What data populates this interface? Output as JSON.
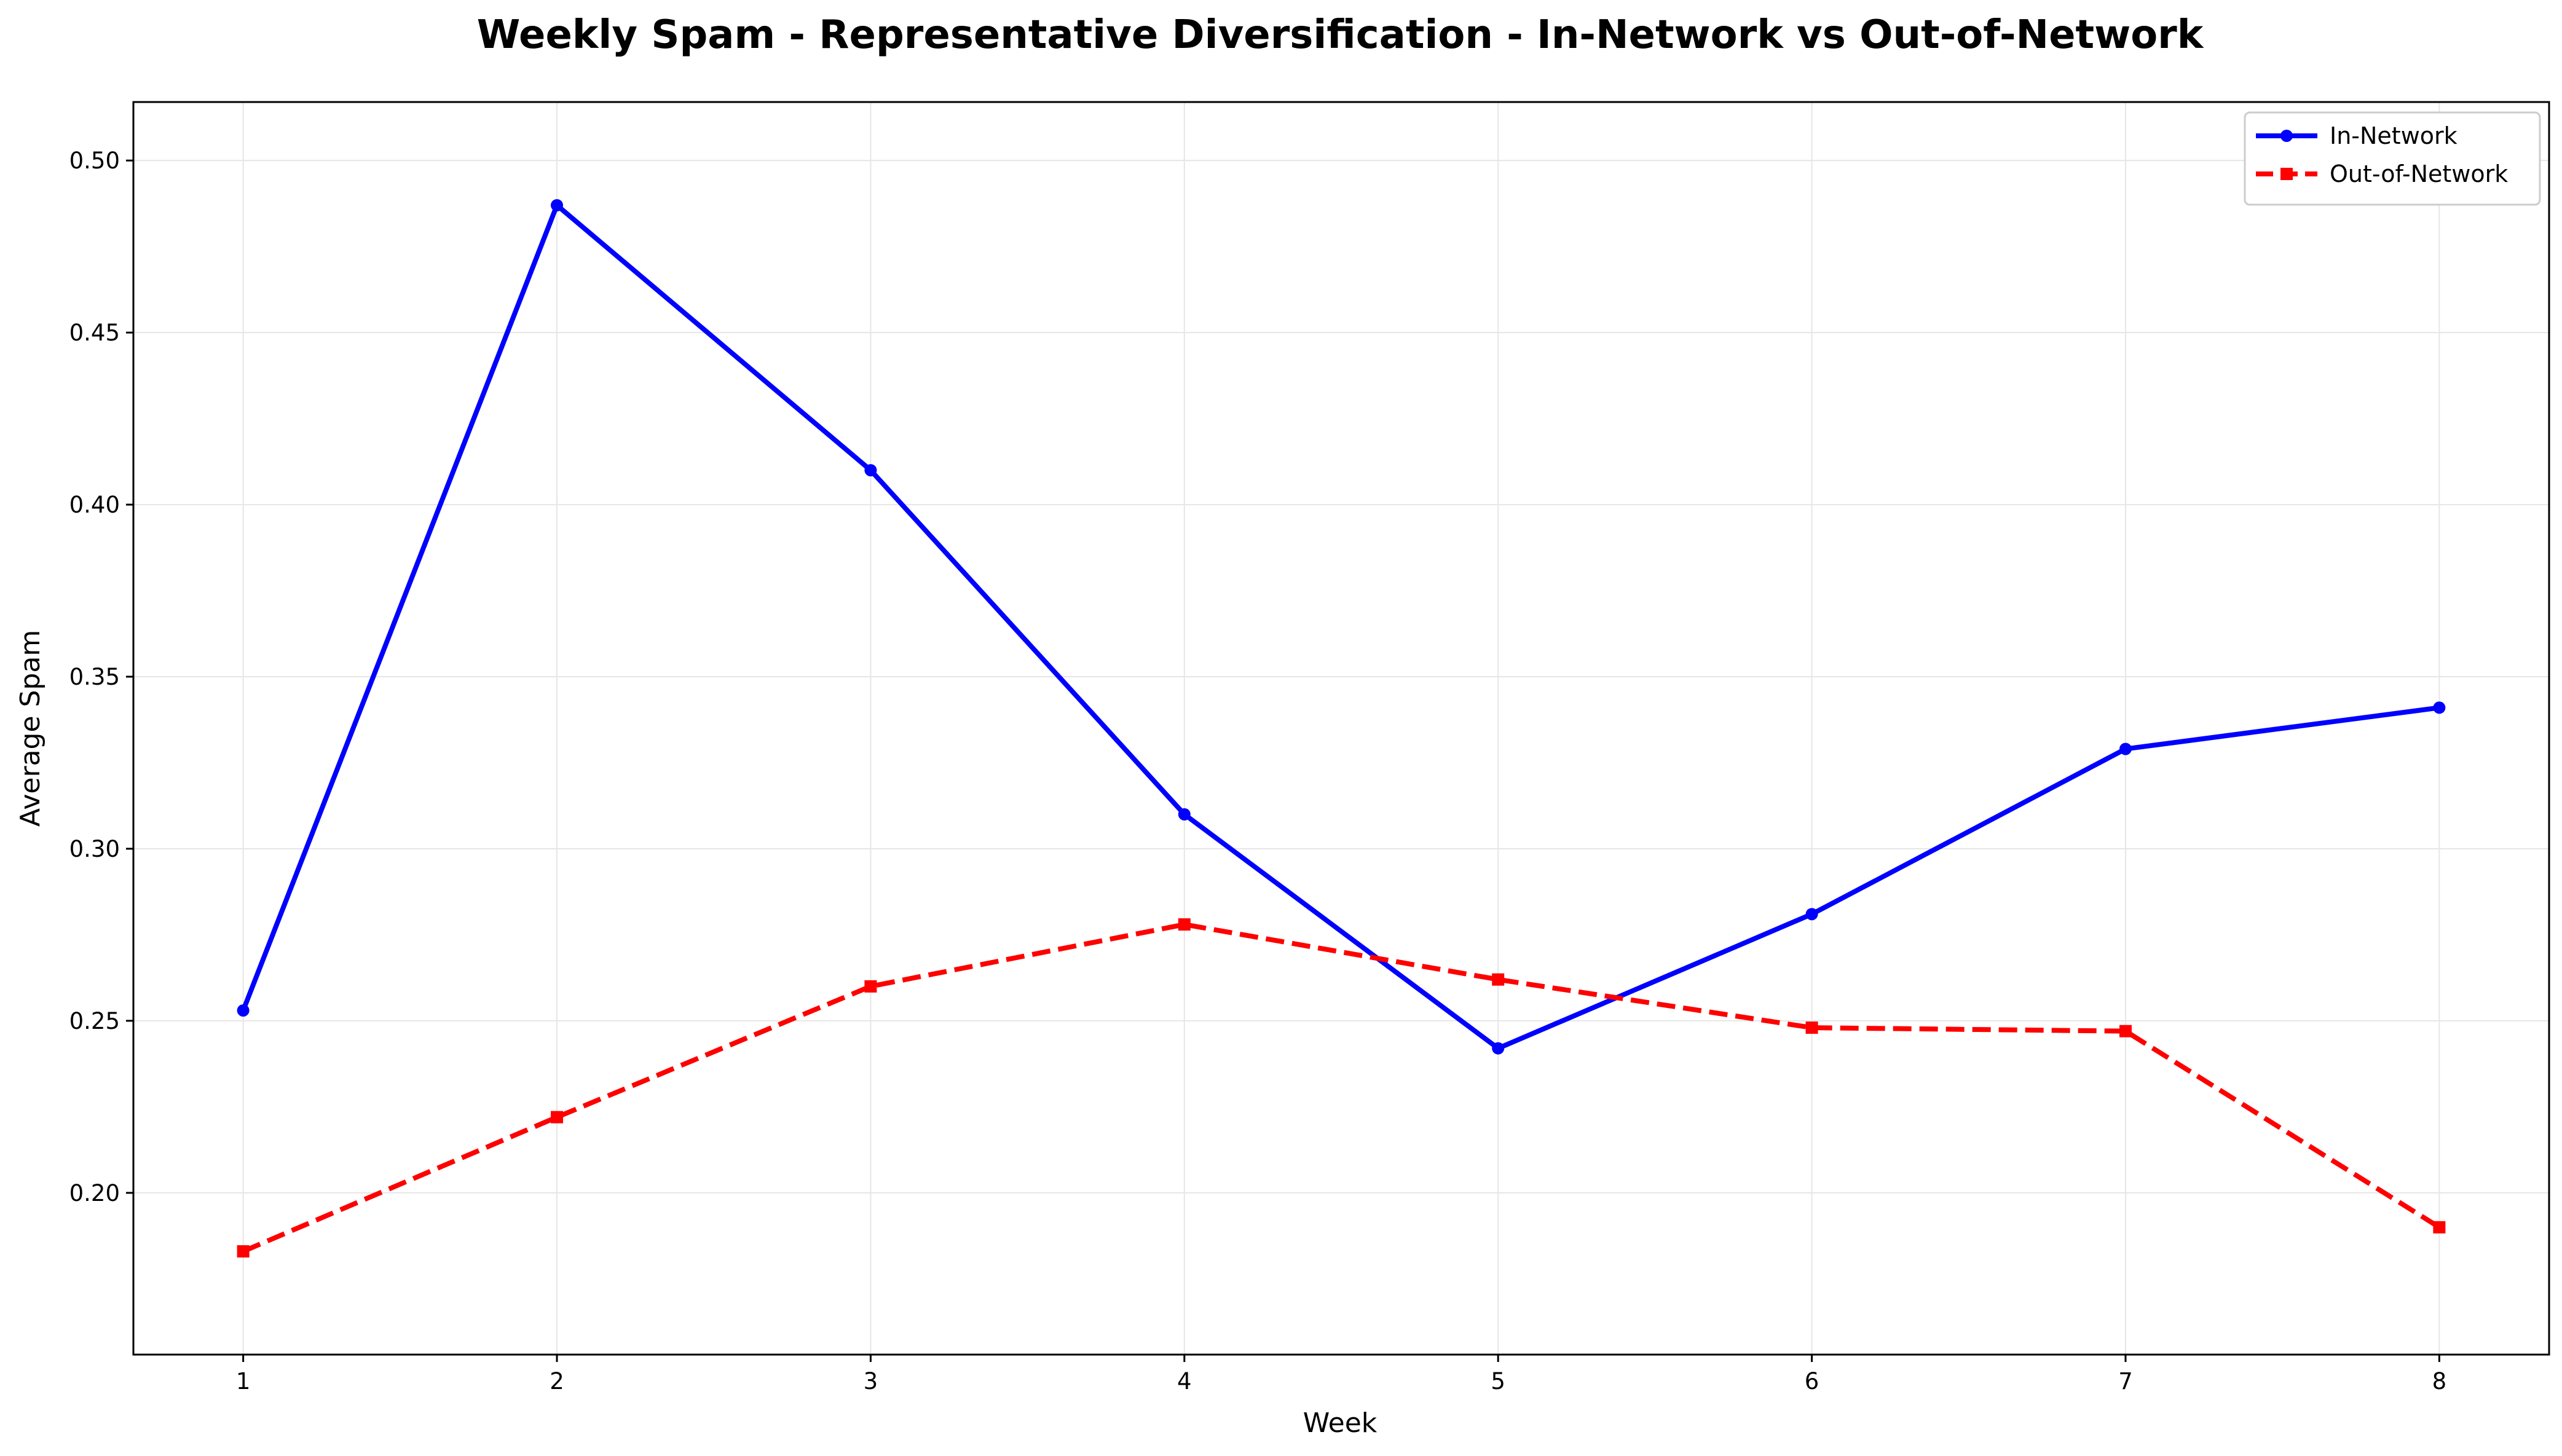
{
  "chart_data": {
    "type": "line",
    "title": "Weekly Spam - Representative Diversification - In-Network vs Out-of-Network",
    "xlabel": "Week",
    "ylabel": "Average Spam",
    "x": [
      1,
      2,
      3,
      4,
      5,
      6,
      7,
      8
    ],
    "x_ticks": [
      "1",
      "2",
      "3",
      "4",
      "5",
      "6",
      "7",
      "8"
    ],
    "xlim": [
      0.65,
      8.35
    ],
    "ylim": [
      0.153,
      0.517
    ],
    "y_ticks": [
      "0.20",
      "0.25",
      "0.30",
      "0.35",
      "0.40",
      "0.45",
      "0.50"
    ],
    "grid": true,
    "legend_position": "top-right",
    "series": [
      {
        "name": "In-Network",
        "values": [
          0.253,
          0.487,
          0.41,
          0.31,
          0.242,
          0.281,
          0.329,
          0.341
        ],
        "color": "#0000ff",
        "line_style": "solid",
        "marker": "circle"
      },
      {
        "name": "Out-of-Network",
        "values": [
          0.183,
          0.222,
          0.26,
          0.278,
          0.262,
          0.248,
          0.247,
          0.19
        ],
        "color": "#ff0000",
        "line_style": "dashed",
        "marker": "square"
      }
    ]
  }
}
